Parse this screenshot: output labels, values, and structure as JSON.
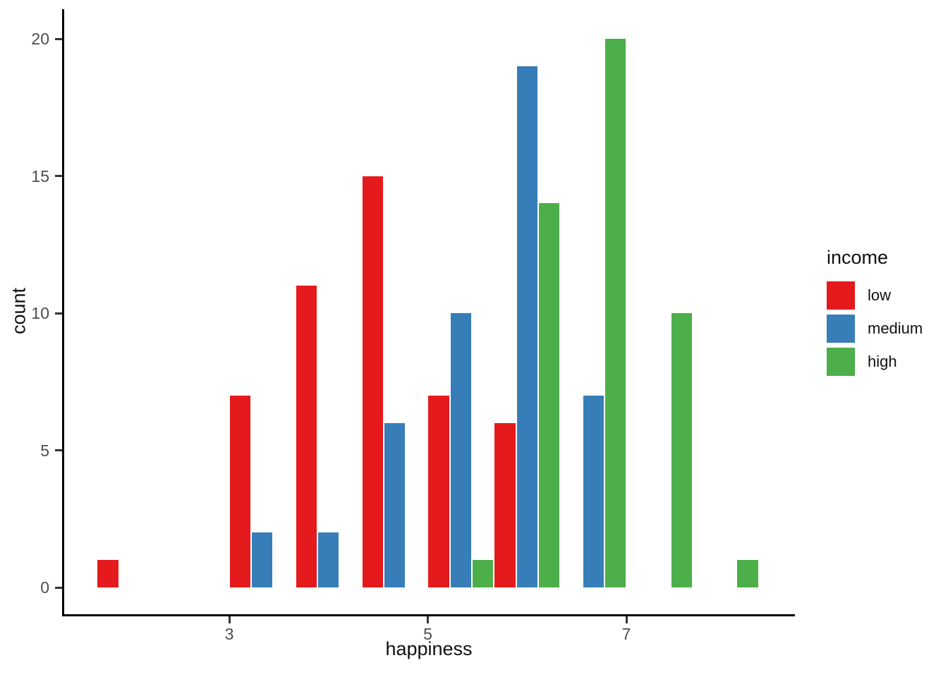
{
  "figure": {
    "background": "#ffffff",
    "axis_line_color": "#000000",
    "tick_color": "#333333",
    "tick_label_color": "#4d4d4d",
    "text_color": "#111111"
  },
  "chart_data": {
    "type": "bar",
    "subtype": "dodged-histogram",
    "title": "",
    "xlabel": "happiness",
    "ylabel": "count",
    "x_ticks": [
      3,
      5,
      7
    ],
    "y_ticks": [
      0,
      5,
      10,
      15,
      20
    ],
    "xlim": [
      1.3,
      8.65
    ],
    "ylim": [
      0,
      20
    ],
    "grid": false,
    "legend_position": "right",
    "binwidth": 0.667,
    "bin_centers": [
      2.0,
      3.333,
      4.0,
      4.667,
      5.333,
      6.0,
      6.667,
      7.333,
      8.0
    ],
    "series": [
      {
        "name": "low",
        "color": "#E41A1C",
        "values": [
          1,
          7,
          11,
          15,
          7,
          6,
          null,
          null,
          null
        ]
      },
      {
        "name": "medium",
        "color": "#377EB8",
        "values": [
          null,
          2,
          2,
          6,
          10,
          19,
          7,
          null,
          null
        ]
      },
      {
        "name": "high",
        "color": "#4DAF4A",
        "values": [
          null,
          null,
          null,
          null,
          1,
          14,
          20,
          10,
          1
        ]
      }
    ]
  },
  "legend": {
    "title": "income",
    "entries": [
      {
        "label": "low",
        "color": "#E41A1C"
      },
      {
        "label": "medium",
        "color": "#377EB8"
      },
      {
        "label": "high",
        "color": "#4DAF4A"
      }
    ]
  }
}
